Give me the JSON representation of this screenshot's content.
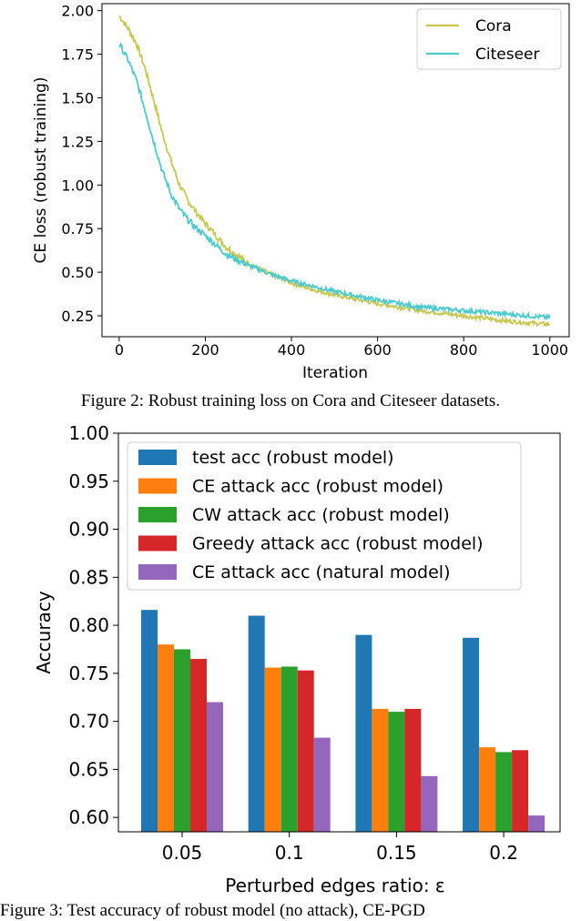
{
  "chart_data": [
    {
      "type": "line",
      "title": "",
      "xlabel": "Iteration",
      "ylabel": "CE loss (robust training)",
      "xlim": [
        -40,
        1045
      ],
      "ylim": [
        0.13,
        2.04
      ],
      "xticks": [
        0,
        200,
        400,
        600,
        800,
        1000
      ],
      "xtick_labels": [
        "0",
        "200",
        "400",
        "600",
        "800",
        "1000"
      ],
      "yticks": [
        0.25,
        0.5,
        0.75,
        1.0,
        1.25,
        1.5,
        1.75,
        2.0
      ],
      "ytick_labels": [
        "0.25",
        "0.50",
        "0.75",
        "1.00",
        "1.25",
        "1.50",
        "1.75",
        "2.00"
      ],
      "grid": false,
      "legend_position": "top-right",
      "series": [
        {
          "name": "Cora",
          "color": "#c8c850",
          "x": [
            0,
            20,
            40,
            60,
            80,
            100,
            120,
            140,
            160,
            180,
            200,
            250,
            300,
            350,
            400,
            450,
            500,
            600,
            700,
            800,
            900,
            1000
          ],
          "y": [
            1.97,
            1.9,
            1.81,
            1.67,
            1.49,
            1.3,
            1.14,
            1.0,
            0.91,
            0.84,
            0.78,
            0.64,
            0.55,
            0.49,
            0.44,
            0.4,
            0.37,
            0.32,
            0.28,
            0.25,
            0.22,
            0.2
          ]
        },
        {
          "name": "Citeseer",
          "color": "#4ccbcf",
          "x": [
            0,
            20,
            40,
            60,
            80,
            100,
            120,
            140,
            160,
            180,
            200,
            250,
            300,
            350,
            400,
            450,
            500,
            600,
            700,
            800,
            900,
            1000
          ],
          "y": [
            1.81,
            1.72,
            1.6,
            1.43,
            1.25,
            1.08,
            0.95,
            0.86,
            0.8,
            0.75,
            0.71,
            0.6,
            0.54,
            0.49,
            0.45,
            0.42,
            0.39,
            0.34,
            0.3,
            0.28,
            0.26,
            0.24
          ]
        }
      ]
    },
    {
      "type": "bar",
      "title": "",
      "xlabel": "Perturbed edges ratio: ε",
      "ylabel": "Accuracy",
      "categories": [
        "0.05",
        "0.1",
        "0.15",
        "0.2"
      ],
      "ylim": [
        0.585,
        1.0
      ],
      "yticks": [
        0.6,
        0.65,
        0.7,
        0.75,
        0.8,
        0.85,
        0.9,
        0.95,
        1.0
      ],
      "ytick_labels": [
        "0.60",
        "0.65",
        "0.70",
        "0.75",
        "0.80",
        "0.85",
        "0.90",
        "0.95",
        "1.00"
      ],
      "grid": false,
      "legend_position": "top-center",
      "series": [
        {
          "name": "test acc (robust model)",
          "color": "#1f77b4",
          "values": [
            0.816,
            0.81,
            0.79,
            0.787
          ]
        },
        {
          "name": "CE attack acc (robust model)",
          "color": "#ff7f0e",
          "values": [
            0.78,
            0.756,
            0.713,
            0.673
          ]
        },
        {
          "name": "CW attack acc (robust model)",
          "color": "#2ca02c",
          "values": [
            0.775,
            0.757,
            0.71,
            0.668
          ]
        },
        {
          "name": "Greedy attack acc (robust model)",
          "color": "#d62728",
          "values": [
            0.765,
            0.753,
            0.713,
            0.67
          ]
        },
        {
          "name": "CE attack acc (natural model)",
          "color": "#9467bd",
          "values": [
            0.72,
            0.683,
            0.643,
            0.602
          ]
        }
      ]
    }
  ],
  "captions": {
    "fig2": "Figure 2: Robust training loss on Cora and Citeseer datasets.",
    "fig3": "Figure 3: Test accuracy of robust model (no attack), CE-PGD"
  }
}
